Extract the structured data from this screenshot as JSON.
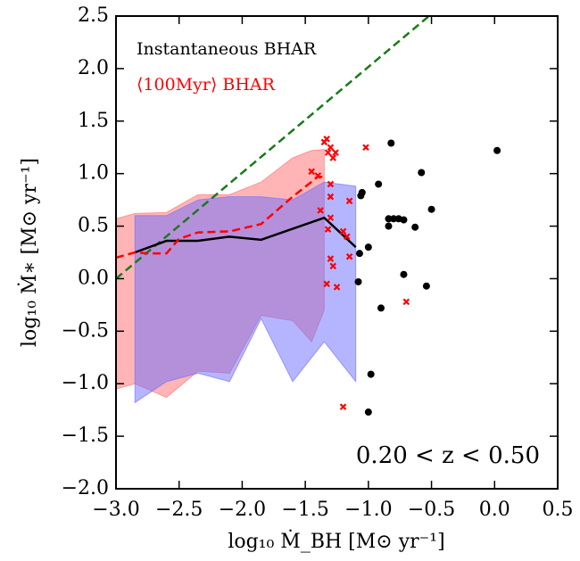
{
  "chart_data": {
    "type": "line",
    "xlabel": "log₁₀ Ṁ_BH [M⊙ yr⁻¹]",
    "ylabel": "log₁₀ Ṁ∗ [M⊙ yr⁻¹]",
    "annotation": "0.20 < z < 0.50",
    "xlim": [
      -3.0,
      0.5
    ],
    "ylim": [
      -2.0,
      2.5
    ],
    "xticks": [
      {
        "value": -3.0,
        "label": "−3.0"
      },
      {
        "value": -2.5,
        "label": "−2.5"
      },
      {
        "value": -2.0,
        "label": "−2.0"
      },
      {
        "value": -1.5,
        "label": "−1.5"
      },
      {
        "value": -1.0,
        "label": "−1.0"
      },
      {
        "value": -0.5,
        "label": "−0.5"
      },
      {
        "value": 0.0,
        "label": "0.0"
      },
      0.5
    ],
    "yticks": [
      {
        "value": -2.0,
        "label": "−2.0"
      },
      {
        "value": -1.5,
        "label": "−1.5"
      },
      {
        "value": -1.0,
        "label": "−1.0"
      },
      {
        "value": -0.5,
        "label": "−0.5"
      },
      {
        "value": 0.0,
        "label": "0.0"
      },
      0.5,
      {
        "value": 1.0,
        "label": "1.0"
      },
      1.5,
      {
        "value": 2.0,
        "label": "2.0"
      },
      2.5
    ],
    "series": [
      {
        "kind": "band",
        "color": "#ff6b6b",
        "x": [
          -3.0,
          -2.85,
          -2.6,
          -2.35,
          -2.1,
          -1.85,
          -1.6,
          -1.45,
          -1.35
        ],
        "upper": [
          0.57,
          0.62,
          0.63,
          0.8,
          0.8,
          0.92,
          1.15,
          1.22,
          1.23
        ],
        "lower": [
          -1.05,
          -1.0,
          -1.13,
          -0.88,
          -0.9,
          -0.35,
          -0.4,
          -0.6,
          -0.3
        ]
      },
      {
        "kind": "band",
        "color": "#6b6bff",
        "x": [
          -2.85,
          -2.6,
          -2.35,
          -2.1,
          -1.85,
          -1.6,
          -1.35,
          -1.1
        ],
        "upper": [
          0.6,
          0.6,
          0.75,
          0.78,
          0.78,
          0.75,
          0.92,
          0.88
        ],
        "lower": [
          -1.18,
          -0.98,
          -0.9,
          -0.98,
          -0.38,
          -0.98,
          -0.6,
          -0.98
        ]
      },
      {
        "kind": "dashed",
        "color": "#1a7a1a",
        "x": [
          -3.0,
          -0.52
        ],
        "values": [
          0.0,
          2.5
        ]
      },
      {
        "kind": "solid",
        "name": "Instantaneous BHAR",
        "color": "#000000",
        "x": [
          -2.85,
          -2.6,
          -2.35,
          -2.1,
          -1.85,
          -1.35,
          -1.1
        ],
        "values": [
          0.25,
          0.36,
          0.36,
          0.4,
          0.37,
          0.58,
          0.3
        ]
      },
      {
        "kind": "dashed",
        "name": "⟨100Myr⟩ BHAR",
        "color": "#ff0000",
        "x": [
          -3.0,
          -2.85,
          -2.75,
          -2.6,
          -2.5,
          -2.35,
          -2.1,
          -1.85,
          -1.6,
          -1.4,
          -1.35
        ],
        "values": [
          0.2,
          0.25,
          0.24,
          0.24,
          0.38,
          0.44,
          0.45,
          0.52,
          0.78,
          0.97,
          0.97
        ]
      },
      {
        "kind": "dots",
        "color": "#000000",
        "x": [
          0.02,
          -0.82,
          -0.58,
          -0.5,
          -0.92,
          -1.05,
          -1.06,
          -0.8,
          -0.76,
          -0.72,
          -0.84,
          -0.84,
          -0.63,
          -1.0,
          -1.07,
          -0.72,
          -1.08,
          -0.54,
          -0.9,
          -0.98,
          -1.0
        ],
        "values": [
          1.22,
          1.29,
          1.01,
          0.66,
          0.9,
          0.82,
          0.79,
          0.57,
          0.57,
          0.56,
          0.57,
          0.5,
          0.49,
          0.3,
          0.24,
          0.04,
          -0.03,
          -0.07,
          -0.28,
          -0.91,
          -1.27
        ]
      },
      {
        "kind": "crosses",
        "color": "#ff0000",
        "x": [
          -1.35,
          -1.33,
          -1.3,
          -1.32,
          -1.26,
          -1.28,
          -1.02,
          -1.45,
          -1.4,
          -1.3,
          -1.3,
          -1.15,
          -1.38,
          -1.3,
          -1.32,
          -1.2,
          -1.17,
          -1.15,
          -1.3,
          -1.28,
          -1.33,
          -1.25,
          -0.7,
          -1.2
        ],
        "values": [
          1.3,
          1.33,
          1.25,
          1.2,
          1.2,
          1.15,
          1.25,
          1.02,
          0.98,
          0.9,
          0.78,
          0.74,
          0.65,
          0.58,
          0.47,
          0.45,
          0.4,
          0.21,
          0.19,
          0.12,
          -0.05,
          -0.08,
          -0.22,
          -1.22
        ]
      }
    ]
  }
}
